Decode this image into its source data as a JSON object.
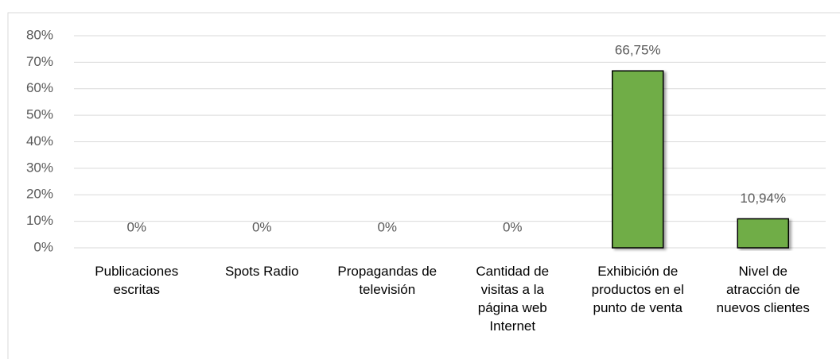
{
  "chart_data": {
    "type": "bar",
    "categories": [
      "Publicaciones escritas",
      "Spots Radio",
      "Propagandas de televisión",
      "Cantidad de visitas a la página web Internet",
      "Exhibición de productos en el punto de venta",
      "Nivel de atracción de nuevos clientes"
    ],
    "values": [
      0,
      0,
      0,
      0,
      66.75,
      10.94
    ],
    "value_labels": [
      "0%",
      "0%",
      "0%",
      "0%",
      "66,75%",
      "10,94%"
    ],
    "color": "#70ad47",
    "ylim": [
      0,
      80
    ],
    "yticks": [
      {
        "value": 0,
        "label": "0%"
      },
      {
        "value": 10,
        "label": "10%"
      },
      {
        "value": 20,
        "label": "20%"
      },
      {
        "value": 30,
        "label": "30%"
      },
      {
        "value": 40,
        "label": "40%"
      },
      {
        "value": 50,
        "label": "50%"
      },
      {
        "value": 60,
        "label": "60%"
      },
      {
        "value": 70,
        "label": "70%"
      },
      {
        "value": 80,
        "label": "80%"
      }
    ],
    "grid": true
  }
}
